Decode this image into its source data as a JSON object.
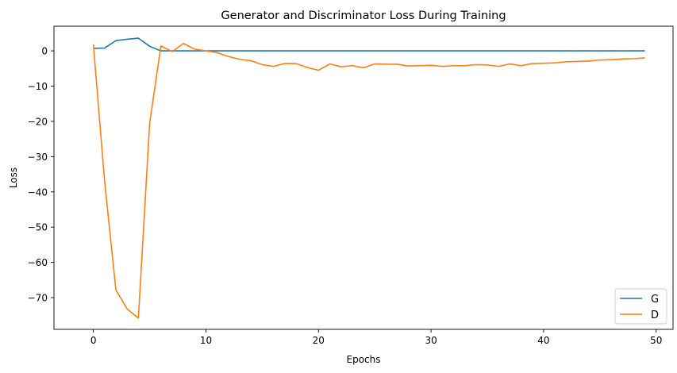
{
  "chart_data": {
    "type": "line",
    "title": "Generator and Discriminator Loss During Training",
    "xlabel": "Epochs",
    "ylabel": "Loss",
    "xlim": [
      -3.5,
      51.5
    ],
    "ylim": [
      -79,
      7
    ],
    "x_ticks": [
      0,
      10,
      20,
      30,
      40,
      50
    ],
    "y_ticks": [
      0,
      -10,
      -20,
      -30,
      -40,
      -50,
      -60,
      -70
    ],
    "x_tick_labels": [
      "0",
      "10",
      "20",
      "30",
      "40",
      "50"
    ],
    "y_tick_labels": [
      "0",
      "−10",
      "−20",
      "−30",
      "−40",
      "−50",
      "−60",
      "−70"
    ],
    "grid": false,
    "legend_position": "lower right",
    "x": [
      0,
      1,
      2,
      3,
      4,
      5,
      6,
      7,
      8,
      9,
      10,
      11,
      12,
      13,
      14,
      15,
      16,
      17,
      18,
      19,
      20,
      21,
      22,
      23,
      24,
      25,
      26,
      27,
      28,
      29,
      30,
      31,
      32,
      33,
      34,
      35,
      36,
      37,
      38,
      39,
      40,
      41,
      42,
      43,
      44,
      45,
      46,
      47,
      48,
      49
    ],
    "series": [
      {
        "name": "G",
        "color": "#1f77b4",
        "values": [
          0.7,
          0.8,
          2.9,
          3.3,
          3.6,
          1.3,
          0.0,
          0.0,
          0.0,
          0.0,
          0.0,
          0.0,
          0.0,
          0.0,
          0.0,
          0.0,
          0.0,
          0.0,
          0.0,
          0.0,
          0.0,
          0.0,
          0.0,
          0.0,
          0.0,
          0.0,
          0.0,
          0.0,
          0.0,
          0.0,
          0.0,
          0.0,
          0.0,
          0.0,
          0.0,
          0.0,
          0.0,
          0.0,
          0.0,
          0.0,
          0.0,
          0.0,
          0.0,
          0.0,
          0.0,
          0.0,
          0.0,
          0.0,
          0.0,
          0.0
        ]
      },
      {
        "name": "D",
        "color": "#ff7f0e",
        "values": [
          1.8,
          -37.0,
          -67.8,
          -73.2,
          -75.8,
          -20.5,
          1.4,
          -0.2,
          2.1,
          0.5,
          0.0,
          -0.5,
          -1.6,
          -2.4,
          -2.8,
          -3.9,
          -4.4,
          -3.6,
          -3.6,
          -4.7,
          -5.5,
          -3.7,
          -4.5,
          -4.2,
          -4.8,
          -3.7,
          -3.8,
          -3.8,
          -4.3,
          -4.2,
          -4.1,
          -4.4,
          -4.2,
          -4.2,
          -3.9,
          -4.0,
          -4.4,
          -3.7,
          -4.2,
          -3.6,
          -3.5,
          -3.4,
          -3.1,
          -3.0,
          -2.9,
          -2.6,
          -2.5,
          -2.3,
          -2.2,
          -2.0
        ]
      }
    ]
  }
}
